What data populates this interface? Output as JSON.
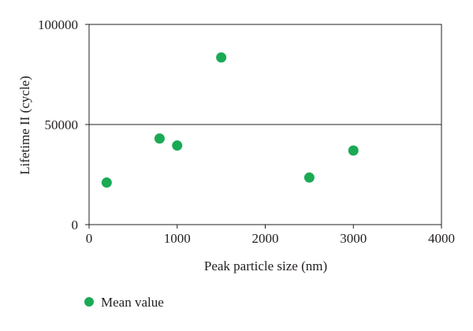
{
  "chart_data": {
    "type": "scatter",
    "title": "",
    "xlabel": "Peak particle size (nm)",
    "ylabel": "Lifetime II (cycle)",
    "xlim": [
      0,
      4000
    ],
    "ylim": [
      0,
      100000
    ],
    "x_ticks": [
      0,
      1000,
      2000,
      3000,
      4000
    ],
    "y_ticks": [
      0,
      50000,
      100000
    ],
    "x_tick_labels": [
      "0",
      "1000",
      "2000",
      "3000",
      "4000"
    ],
    "y_tick_labels": [
      "0",
      "50000",
      "100000"
    ],
    "grid": false,
    "reference_lines": [
      {
        "axis": "y",
        "value": 50000
      }
    ],
    "legend_position": "bottom-left",
    "series": [
      {
        "name": "Mean value",
        "color": "#1aaa55",
        "points": [
          {
            "x": 200,
            "y": 21000
          },
          {
            "x": 800,
            "y": 43000
          },
          {
            "x": 1000,
            "y": 39500
          },
          {
            "x": 1500,
            "y": 83500
          },
          {
            "x": 2500,
            "y": 23500
          },
          {
            "x": 3000,
            "y": 37000
          }
        ]
      }
    ]
  }
}
